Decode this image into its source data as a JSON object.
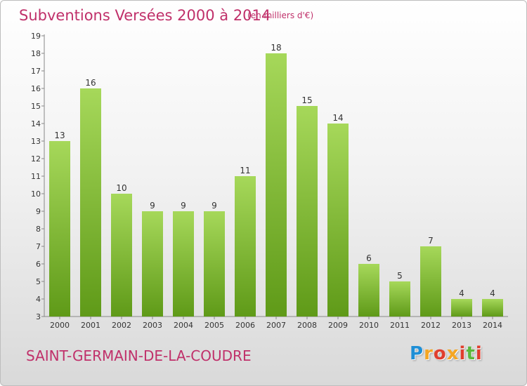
{
  "title": "Subventions Versées 2000 à 2014",
  "subtitle": "(en milliers d'€)",
  "commune": "SAINT-GERMAIN-DE-LA-COUDRE",
  "logo": {
    "letters": [
      "P",
      "r",
      "o",
      "x",
      "i",
      "t",
      "i"
    ],
    "colors": [
      "#1e8fd6",
      "#f5a623",
      "#e03e2d",
      "#f5a623",
      "#e03e2d",
      "#5bb83b",
      "#e03e2d"
    ]
  },
  "colors": {
    "bar_top": "#a6d85a",
    "bar_bottom": "#5f9a18",
    "text_accent": "#c0306a"
  },
  "chart_data": {
    "type": "bar",
    "categories": [
      "2000",
      "2001",
      "2002",
      "2003",
      "2004",
      "2005",
      "2006",
      "2007",
      "2008",
      "2009",
      "2010",
      "2011",
      "2012",
      "2013",
      "2014"
    ],
    "values": [
      13,
      16,
      10,
      9,
      9,
      9,
      11,
      18,
      15,
      14,
      6,
      5,
      7,
      4,
      4
    ],
    "ylim": [
      3,
      19
    ],
    "yticks": [
      "3",
      "4",
      "5",
      "6",
      "7",
      "8",
      "9",
      "10",
      "11",
      "12",
      "13",
      "14",
      "15",
      "16",
      "17",
      "18",
      "19"
    ],
    "grid": false,
    "legend": "none"
  }
}
